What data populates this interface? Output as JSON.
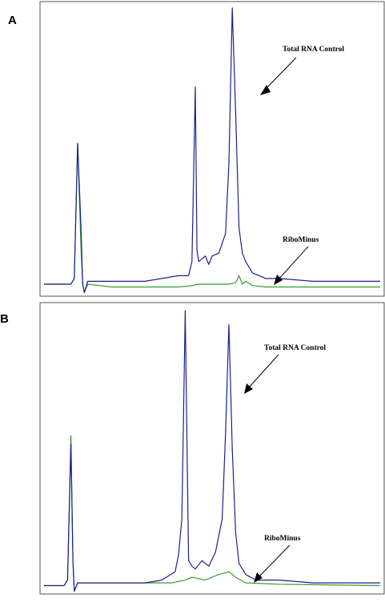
{
  "chart_data": [
    {
      "panel": "A",
      "type": "line",
      "series": [
        {
          "color": "#1f1f8f",
          "points": [
            [
              0,
              0.02
            ],
            [
              8,
              0.02
            ],
            [
              9,
              0.04
            ],
            [
              10,
              0.52
            ],
            [
              11,
              0.22
            ],
            [
              11.5,
              0.02
            ],
            [
              12,
              -0.01
            ],
            [
              13,
              0.03
            ],
            [
              20,
              0.03
            ],
            [
              30,
              0.03
            ],
            [
              35,
              0.04
            ],
            [
              40,
              0.05
            ],
            [
              43,
              0.05
            ],
            [
              44,
              0.1
            ],
            [
              45,
              0.72
            ],
            [
              45.5,
              0.14
            ],
            [
              46,
              0.1
            ],
            [
              47,
              0.11
            ],
            [
              48,
              0.12
            ],
            [
              49,
              0.09
            ],
            [
              50,
              0.12
            ],
            [
              52,
              0.13
            ],
            [
              54,
              0.2
            ],
            [
              55,
              0.45
            ],
            [
              56,
              1.0
            ],
            [
              57,
              0.63
            ],
            [
              58,
              0.22
            ],
            [
              59,
              0.13
            ],
            [
              60,
              0.1
            ],
            [
              62,
              0.06
            ],
            [
              64,
              0.05
            ],
            [
              66,
              0.04
            ],
            [
              70,
              0.04
            ],
            [
              80,
              0.03
            ],
            [
              90,
              0.03
            ],
            [
              100,
              0.03
            ]
          ]
        },
        {
          "color": "#2e9e2e",
          "points": [
            [
              0,
              0.02
            ],
            [
              8,
              0.02
            ],
            [
              9,
              0.04
            ],
            [
              10,
              0.52
            ],
            [
              11,
              0.15
            ],
            [
              11.5,
              0.02
            ],
            [
              12,
              -0.01
            ],
            [
              13,
              0.02
            ],
            [
              20,
              0.01
            ],
            [
              30,
              0.01
            ],
            [
              40,
              0.01
            ],
            [
              44,
              0.015
            ],
            [
              46,
              0.02
            ],
            [
              50,
              0.02
            ],
            [
              55,
              0.02
            ],
            [
              57,
              0.025
            ],
            [
              58,
              0.05
            ],
            [
              59,
              0.02
            ],
            [
              60,
              0.03
            ],
            [
              62,
              0.015
            ],
            [
              66,
              0.01
            ],
            [
              80,
              0.01
            ],
            [
              100,
              0.01
            ]
          ]
        }
      ],
      "annotations": [
        "Total RNA Control",
        "RiboMinus"
      ]
    },
    {
      "panel": "B",
      "type": "line",
      "series": [
        {
          "color": "#1f1f8f",
          "points": [
            [
              0,
              0.01
            ],
            [
              6,
              0.01
            ],
            [
              7,
              0.03
            ],
            [
              8,
              0.52
            ],
            [
              8.6,
              0.1
            ],
            [
              9,
              -0.01
            ],
            [
              10,
              0.02
            ],
            [
              20,
              0.02
            ],
            [
              30,
              0.02
            ],
            [
              35,
              0.03
            ],
            [
              39,
              0.06
            ],
            [
              40,
              0.12
            ],
            [
              41,
              0.25
            ],
            [
              42,
              1.0
            ],
            [
              43,
              0.1
            ],
            [
              44,
              0.08
            ],
            [
              45,
              0.07
            ],
            [
              47,
              0.1
            ],
            [
              49,
              0.08
            ],
            [
              51,
              0.13
            ],
            [
              53,
              0.25
            ],
            [
              54,
              0.56
            ],
            [
              55,
              0.95
            ],
            [
              56,
              0.5
            ],
            [
              57,
              0.2
            ],
            [
              58,
              0.09
            ],
            [
              60,
              0.05
            ],
            [
              63,
              0.03
            ],
            [
              70,
              0.03
            ],
            [
              80,
              0.02
            ],
            [
              100,
              0.02
            ]
          ]
        },
        {
          "color": "#2e9e2e",
          "points": [
            [
              0,
              0.01
            ],
            [
              6,
              0.01
            ],
            [
              7,
              0.03
            ],
            [
              8,
              0.55
            ],
            [
              8.6,
              0.1
            ],
            [
              9,
              -0.01
            ],
            [
              10,
              0.02
            ],
            [
              20,
              0.02
            ],
            [
              30,
              0.02
            ],
            [
              38,
              0.02
            ],
            [
              42,
              0.03
            ],
            [
              44,
              0.04
            ],
            [
              48,
              0.03
            ],
            [
              52,
              0.05
            ],
            [
              55,
              0.06
            ],
            [
              57,
              0.04
            ],
            [
              60,
              0.02
            ],
            [
              70,
              0.015
            ],
            [
              100,
              0.01
            ]
          ]
        }
      ],
      "annotations": [
        "Total RNA Control",
        "RiboMinus"
      ]
    }
  ]
}
